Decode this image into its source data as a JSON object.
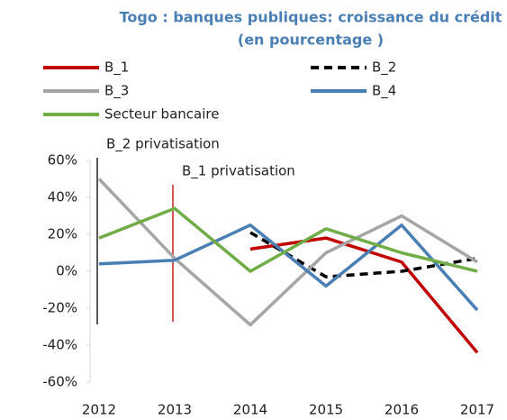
{
  "chart_data": {
    "type": "line",
    "title": [
      "Togo : banques publiques: croissance du crédit",
      "(en pourcentage )"
    ],
    "categories": [
      "2012",
      "2013",
      "2014",
      "2015",
      "2016",
      "2017"
    ],
    "series": [
      {
        "name": "B_1",
        "color": "#c00000",
        "dash": false,
        "values": [
          null,
          null,
          12,
          18,
          5,
          -44
        ]
      },
      {
        "name": "B_2",
        "color": "#000000",
        "dash": true,
        "values": [
          null,
          null,
          21,
          -3,
          0,
          7
        ]
      },
      {
        "name": "B_3",
        "color": "#a6a6a6",
        "dash": false,
        "values": [
          50,
          7,
          -29,
          10,
          30,
          5
        ]
      },
      {
        "name": "B_4",
        "color": "#4a7fb5",
        "dash": false,
        "values": [
          4,
          6,
          25,
          -8,
          25,
          -21
        ]
      },
      {
        "name": "Secteur bancaire",
        "color": "#70ad47",
        "dash": false,
        "values": [
          18,
          34,
          0,
          23,
          10,
          0
        ]
      }
    ],
    "annotations": [
      {
        "text": "B_2 privatisation",
        "category": "2012",
        "color": "#000000"
      },
      {
        "text": "B_1 privatisation",
        "category": "2013",
        "color": "#c00000"
      }
    ],
    "ylim": [
      -60,
      60
    ],
    "yticks": [
      {
        "value": -60,
        "label": "-60%"
      },
      {
        "value": -40,
        "label": "-40%"
      },
      {
        "value": -20,
        "label": "-20%"
      },
      {
        "value": 0,
        "label": "0%"
      },
      {
        "value": 20,
        "label": "20%"
      },
      {
        "value": 40,
        "label": "40%"
      },
      {
        "value": 60,
        "label": "60%"
      }
    ],
    "legend": "top"
  }
}
